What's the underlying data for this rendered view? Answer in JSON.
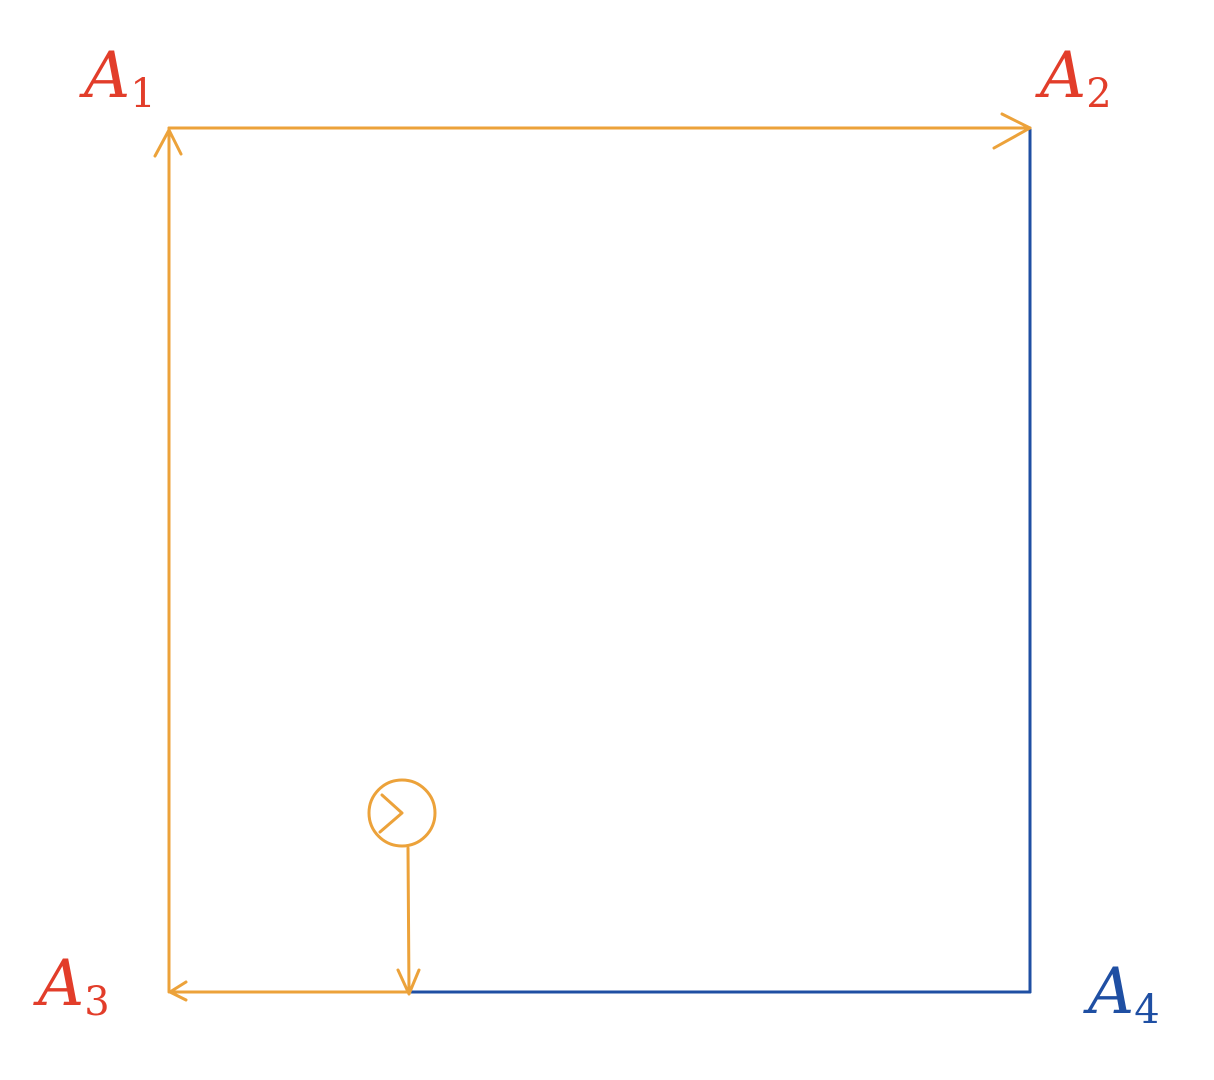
{
  "labels": {
    "a1": {
      "letter": "A",
      "sub": "1"
    },
    "a2": {
      "letter": "A",
      "sub": "2"
    },
    "a3": {
      "letter": "A",
      "sub": "3"
    },
    "a4": {
      "letter": "A",
      "sub": "4"
    }
  },
  "colors": {
    "path": "#ECA23A",
    "edge": "#1F4FA3",
    "red_label": "#E23D2A",
    "blue_label": "#1F4FA3"
  },
  "icons": {
    "start_marker": "pacman-circle-icon"
  }
}
